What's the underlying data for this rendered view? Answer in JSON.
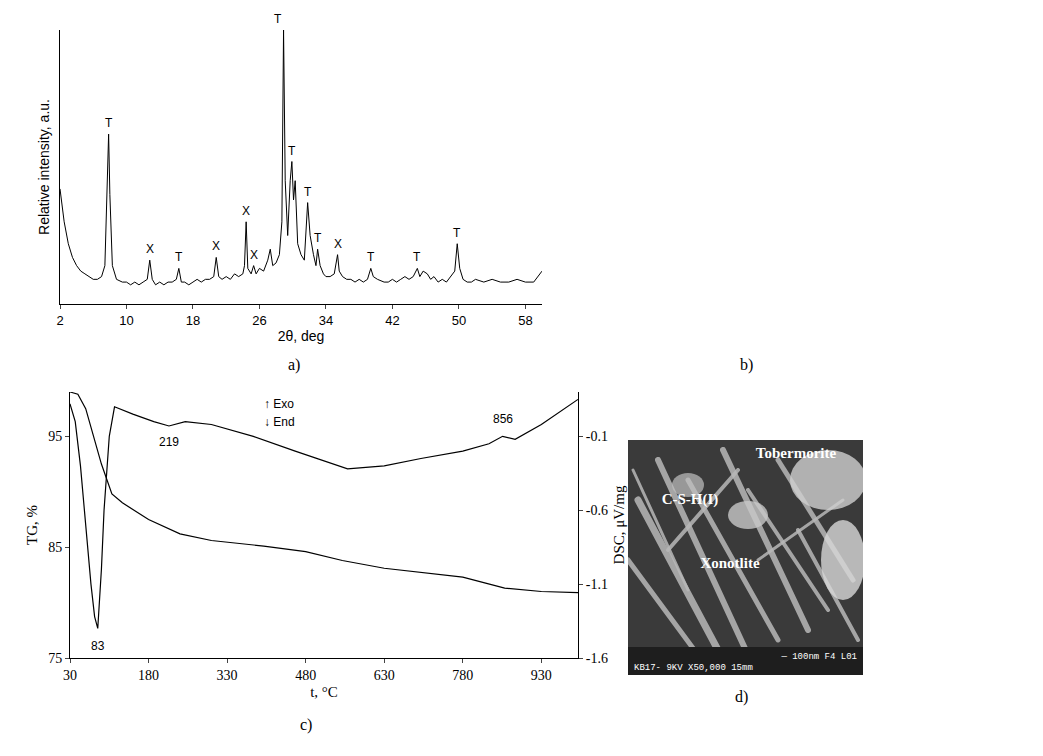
{
  "chart_data": [
    {
      "type": "line",
      "x_label": "2θ, deg",
      "y_label": "Relative intensity, a.u.",
      "xlim": [
        2,
        60
      ],
      "xticks": [
        2,
        10,
        18,
        26,
        34,
        42,
        50,
        58
      ],
      "ylim": [
        0,
        100
      ],
      "tick_labels": "x",
      "grid": false,
      "color": "#000000",
      "x": [
        2,
        2.5,
        3,
        3.5,
        4,
        4.5,
        5,
        5.5,
        6,
        6.5,
        7,
        7.4,
        7.7,
        7.85,
        8.0,
        8.3,
        8.8,
        9.5,
        10,
        10.5,
        11,
        11.5,
        12,
        12.5,
        12.8,
        13.1,
        13.5,
        14,
        14.5,
        15,
        15.5,
        16,
        16.3,
        16.6,
        17,
        17.5,
        18,
        18.5,
        19,
        19.5,
        20,
        20.5,
        20.8,
        21.1,
        21.5,
        22,
        22.5,
        23,
        23.5,
        24,
        24.2,
        24.4,
        24.6,
        25,
        25.3,
        25.6,
        26,
        26.5,
        27,
        27.3,
        27.6,
        28,
        28.4,
        28.7,
        28.9,
        29.1,
        29.4,
        29.7,
        29.9,
        30.1,
        30.3,
        30.6,
        31,
        31.4,
        31.8,
        32.1,
        32.5,
        32.8,
        33,
        33.3,
        33.7,
        34,
        34.5,
        35,
        35.4,
        35.6,
        36,
        36.5,
        37,
        37.5,
        38,
        38.5,
        39,
        39.4,
        39.7,
        40.2,
        41,
        41.5,
        42,
        42.5,
        43,
        43.5,
        44,
        44.5,
        45,
        45.3,
        45.7,
        46.2,
        46.6,
        47,
        47.5,
        48,
        48.5,
        49,
        49.5,
        49.8,
        50.1,
        50.5,
        51,
        51.5,
        52,
        53,
        54,
        55,
        56,
        57,
        58,
        59,
        60
      ],
      "values": [
        42,
        30,
        22,
        17,
        14,
        12,
        11,
        10,
        9,
        9,
        10,
        14,
        45,
        62,
        40,
        14,
        9,
        8,
        8,
        7,
        8,
        7,
        8,
        9,
        16,
        9,
        7,
        8,
        7,
        8,
        8,
        9,
        13,
        8,
        8,
        7,
        8,
        9,
        8,
        9,
        9,
        10,
        17,
        10,
        9,
        10,
        9,
        11,
        10,
        11,
        14,
        30,
        13,
        11,
        14,
        11,
        13,
        12,
        16,
        20,
        14,
        15,
        18,
        30,
        100,
        45,
        25,
        45,
        52,
        38,
        45,
        22,
        18,
        16,
        37,
        25,
        18,
        14,
        20,
        14,
        11,
        10,
        10,
        11,
        18,
        12,
        10,
        9,
        9,
        8,
        9,
        8,
        9,
        13,
        10,
        9,
        8,
        8,
        9,
        8,
        9,
        10,
        9,
        10,
        13,
        10,
        12,
        11,
        9,
        10,
        8,
        9,
        8,
        10,
        12,
        22,
        13,
        9,
        8,
        8,
        9,
        8,
        9,
        8,
        8,
        9,
        8,
        8,
        12
      ],
      "annotations": [
        {
          "x": 7.85,
          "y": 62,
          "text": "T"
        },
        {
          "x": 12.8,
          "y": 16,
          "text": "X"
        },
        {
          "x": 16.3,
          "y": 13,
          "text": "T"
        },
        {
          "x": 20.8,
          "y": 17,
          "text": "X"
        },
        {
          "x": 24.4,
          "y": 30,
          "text": "X"
        },
        {
          "x": 25.3,
          "y": 14,
          "text": "X"
        },
        {
          "x": 28.2,
          "y": 100,
          "text": "T"
        },
        {
          "x": 29.9,
          "y": 52,
          "text": "T"
        },
        {
          "x": 31.8,
          "y": 37,
          "text": "T"
        },
        {
          "x": 33.0,
          "y": 20,
          "text": "T"
        },
        {
          "x": 35.4,
          "y": 18,
          "text": "X"
        },
        {
          "x": 39.4,
          "y": 13,
          "text": "T"
        },
        {
          "x": 45.0,
          "y": 13,
          "text": "T"
        },
        {
          "x": 49.8,
          "y": 22,
          "text": "T"
        }
      ]
    },
    {
      "type": "line",
      "x_label": "t, °C",
      "y_label": "TG, %",
      "y2_label": "DSC, μV/mg",
      "xlim": [
        30,
        1000
      ],
      "xticks": [
        30,
        180,
        330,
        480,
        630,
        780,
        930
      ],
      "ylim": [
        75,
        99
      ],
      "yticks": [
        75,
        85,
        95
      ],
      "y2lim": [
        -1.6,
        0.2
      ],
      "y2ticks": [
        -0.1,
        -0.6,
        -1.1,
        -1.6
      ],
      "grid": false,
      "series": [
        {
          "color": "#000000",
          "x": [
            30,
            45,
            60,
            75,
            90,
            110,
            130,
            180,
            240,
            300,
            400,
            480,
            550,
            630,
            700,
            780,
            820,
            860,
            930,
            1000
          ],
          "values": [
            99,
            98.8,
            97.5,
            95,
            92.5,
            89.8,
            89,
            87.5,
            86.2,
            85.6,
            85.1,
            84.6,
            83.8,
            83.1,
            82.7,
            82.3,
            81.8,
            81.3,
            81.0,
            80.9
          ]
        },
        {
          "color": "#000000",
          "axis": "y2",
          "x": [
            30,
            40,
            50,
            60,
            70,
            77,
            83,
            90,
            95,
            105,
            115,
            150,
            190,
            219,
            250,
            300,
            380,
            460,
            560,
            630,
            700,
            780,
            830,
            856,
            880,
            930,
            970,
            1000
          ],
          "values": [
            0.12,
            0.0,
            -0.3,
            -0.7,
            -1.1,
            -1.32,
            -1.4,
            -1.0,
            -0.6,
            -0.1,
            0.1,
            0.05,
            0.0,
            -0.03,
            0.0,
            -0.02,
            -0.1,
            -0.2,
            -0.32,
            -0.3,
            -0.25,
            -0.2,
            -0.15,
            -0.1,
            -0.12,
            -0.02,
            0.08,
            0.15
          ]
        }
      ],
      "annotations": [
        {
          "x": 83,
          "y": -1.52,
          "text": "83"
        },
        {
          "x": 219,
          "y": -0.14,
          "text": "219"
        },
        {
          "x": 856,
          "y": 0.02,
          "text": "856"
        },
        {
          "x": 430,
          "y": 0.12,
          "text": "↑ Exo"
        },
        {
          "x": 430,
          "y": 0.0,
          "text": "↓ End"
        }
      ]
    }
  ],
  "image": {
    "labels": [
      "Tobermorite",
      "C-S-H(I)",
      "Xonotlite"
    ],
    "info_top": "— 100nm F4 L01",
    "info_bottom": "KB17-   9KV   X50,000   15mm"
  },
  "panel_labels": [
    "a)",
    "b)",
    "c)",
    "d)"
  ]
}
